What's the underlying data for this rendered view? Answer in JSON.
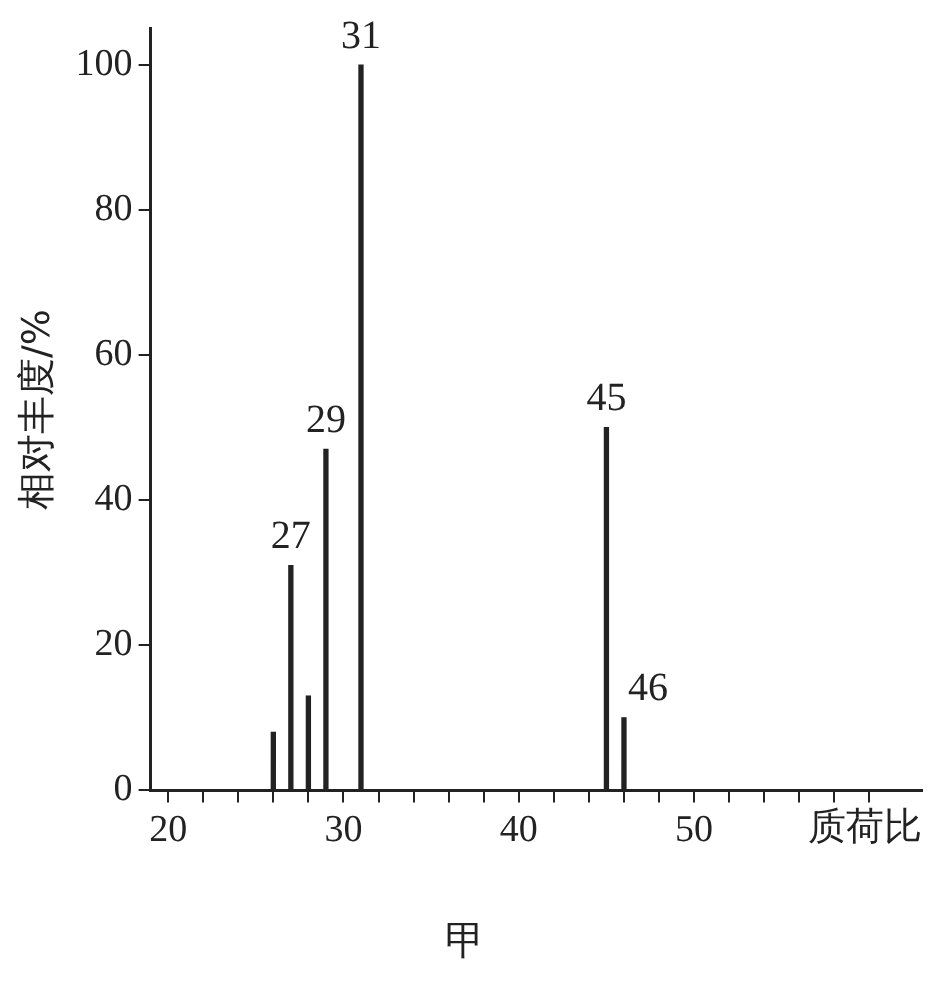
{
  "chart_data": {
    "type": "bar",
    "title": "甲",
    "xlabel": "质荷比",
    "ylabel": "相对丰度/%",
    "x": [
      26,
      27,
      28,
      29,
      31,
      45,
      46
    ],
    "values": [
      8,
      31,
      13,
      47,
      100,
      50,
      10
    ],
    "color": "#222222",
    "xlim": [
      19,
      63
    ],
    "xticks": [
      {
        "value": 20,
        "label": "20"
      },
      {
        "value": 22,
        "label": null
      },
      {
        "value": 24,
        "label": null
      },
      {
        "value": 26,
        "label": null
      },
      {
        "value": 28,
        "label": null
      },
      {
        "value": 30,
        "label": "30"
      },
      {
        "value": 32,
        "label": null
      },
      {
        "value": 34,
        "label": null
      },
      {
        "value": 36,
        "label": null
      },
      {
        "value": 38,
        "label": null
      },
      {
        "value": 40,
        "label": "40"
      },
      {
        "value": 42,
        "label": null
      },
      {
        "value": 44,
        "label": null
      },
      {
        "value": 46,
        "label": null
      },
      {
        "value": 48,
        "label": null
      },
      {
        "value": 50,
        "label": "50"
      },
      {
        "value": 52,
        "label": null
      },
      {
        "value": 54,
        "label": null
      },
      {
        "value": 56,
        "label": null
      },
      {
        "value": 58,
        "label": null
      },
      {
        "value": 60,
        "label": null
      }
    ],
    "ylim": [
      0,
      105
    ],
    "yticks": [
      0,
      20,
      40,
      60,
      80,
      100
    ],
    "grid": false,
    "annotations": [
      {
        "text": "27",
        "x": 27,
        "y": 31
      },
      {
        "text": "29",
        "x": 29,
        "y": 47
      },
      {
        "text": "31",
        "x": 31,
        "y": 100
      },
      {
        "text": "45",
        "x": 45,
        "y": 50
      },
      {
        "text": "46",
        "x": 46,
        "y": 10
      }
    ]
  }
}
